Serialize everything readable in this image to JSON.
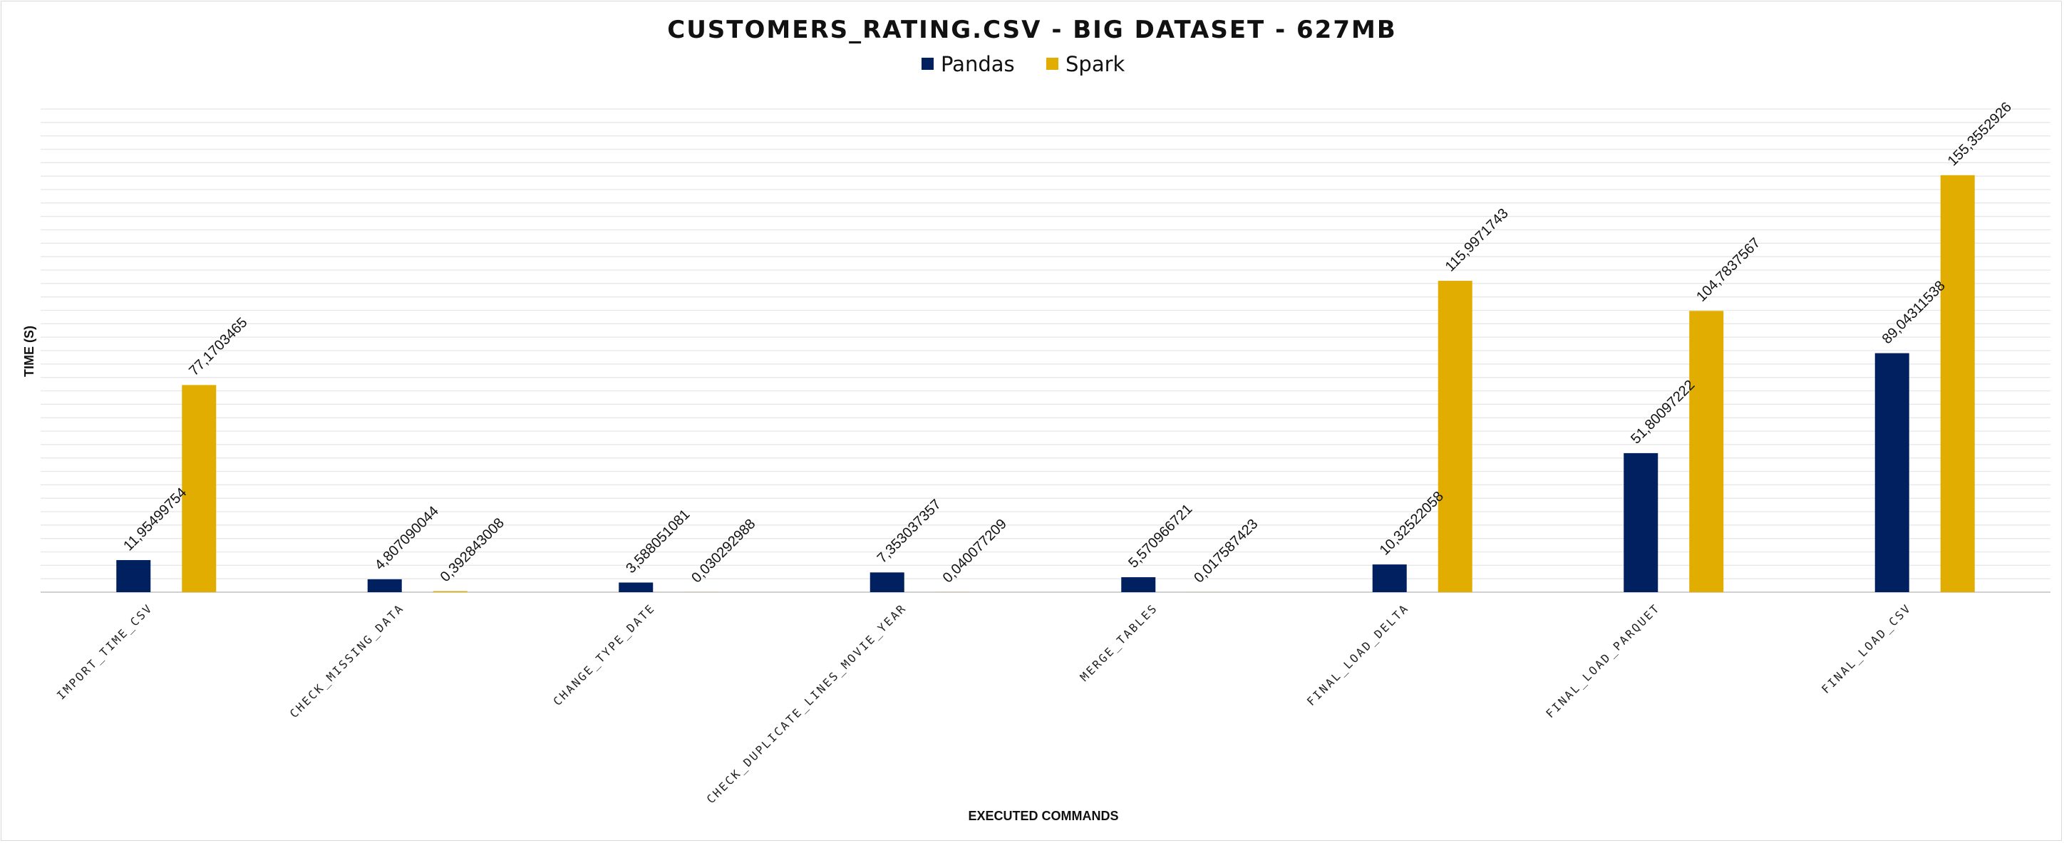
{
  "chart_data": {
    "type": "bar",
    "title": "CUSTOMERS_RATING.CSV - BIG DATASET - 627MB",
    "xlabel": "EXECUTED COMMANDS",
    "ylabel": "TIME (S)",
    "ylim": [
      0,
      180
    ],
    "grid": true,
    "legend_position": "top-center",
    "categories": [
      "IMPORT_TIME_CSV",
      "CHECK_MISSING_DATA",
      "CHANGE_TYPE_DATE",
      "CHECK_DUPLICATE_LINES_MOVIE_YEAR",
      "MERGE_TABLES",
      "FINAL_LOAD_DELTA",
      "FINAL_LOAD_PARQUET",
      "FINAL_LOAD_CSV"
    ],
    "series": [
      {
        "name": "Pandas",
        "color": "#002060",
        "values": [
          11.95499754,
          4.807090044,
          3.588051081,
          7.353037357,
          5.570966721,
          10.32522058,
          51.80097222,
          89.04311538
        ],
        "labels": [
          "11,95499754",
          "4,807090044",
          "3,588051081",
          "7,353037357",
          "5,570966721",
          "10,32522058",
          "51,80097222",
          "89,04311538"
        ]
      },
      {
        "name": "Spark",
        "color": "#E1AD01",
        "values": [
          77.1703465,
          0.392843008,
          0.030292988,
          0.040077209,
          0.017587423,
          115.9971743,
          104.7837567,
          155.3552926
        ],
        "labels": [
          "77,1703465",
          "0,392843008",
          "0,030292988",
          "0,040077209",
          "0,017587423",
          "115,9971743",
          "104,7837567",
          "155,3552926"
        ]
      }
    ]
  }
}
